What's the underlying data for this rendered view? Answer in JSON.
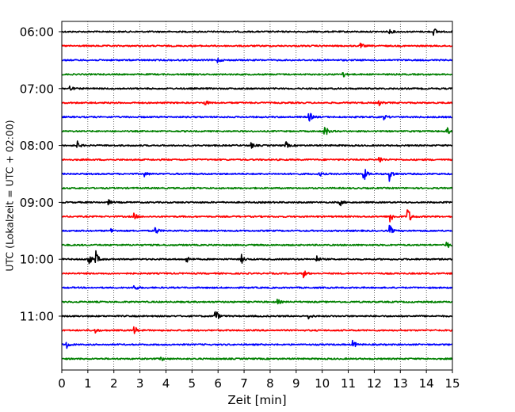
{
  "chart_data": {
    "type": "line",
    "title": "",
    "xlabel": "Zeit  [min]",
    "ylabel": "UTC (Lokalzeit = UTC + 02:00)",
    "xlim": [
      0,
      15
    ],
    "x_ticks": [
      0,
      1,
      2,
      3,
      4,
      5,
      6,
      7,
      8,
      9,
      10,
      11,
      12,
      13,
      14,
      15
    ],
    "x_tick_labels": [
      "0",
      "1",
      "2",
      "3",
      "4",
      "5",
      "6",
      "7",
      "8",
      "9",
      "10",
      "11",
      "12",
      "13",
      "14",
      "15"
    ],
    "grid": "vertical dotted",
    "trace_interval_min": 15,
    "y_tick_labels": [
      {
        "label": "06:00",
        "row": 0
      },
      {
        "label": "07:00",
        "row": 4
      },
      {
        "label": "08:00",
        "row": 8
      },
      {
        "label": "09:00",
        "row": 12
      },
      {
        "label": "10:00",
        "row": 16
      },
      {
        "label": "11:00",
        "row": 20
      }
    ],
    "colors": [
      "#000000",
      "#ff0000",
      "#0000ff",
      "#008000"
    ],
    "series": [
      {
        "start": "06:00",
        "events": [
          {
            "t": 14.3,
            "amp": 0.5
          },
          {
            "t": 12.6,
            "amp": 0.3
          }
        ]
      },
      {
        "start": "06:15",
        "events": [
          {
            "t": 11.5,
            "amp": 0.3
          }
        ]
      },
      {
        "start": "06:30",
        "events": [
          {
            "t": 6.0,
            "amp": 0.3
          }
        ]
      },
      {
        "start": "06:45",
        "events": [
          {
            "t": 10.8,
            "amp": 0.4
          }
        ]
      },
      {
        "start": "07:00",
        "events": [
          {
            "t": 0.3,
            "amp": 0.4
          }
        ]
      },
      {
        "start": "07:15",
        "events": [
          {
            "t": 5.5,
            "amp": 0.4
          },
          {
            "t": 12.2,
            "amp": 0.3
          }
        ]
      },
      {
        "start": "07:30",
        "events": [
          {
            "t": 9.5,
            "amp": 0.8
          },
          {
            "t": 12.4,
            "amp": 0.3
          }
        ]
      },
      {
        "start": "07:45",
        "events": [
          {
            "t": 10.1,
            "amp": 1.0
          },
          {
            "t": 14.8,
            "amp": 0.5
          }
        ]
      },
      {
        "start": "08:00",
        "events": [
          {
            "t": 0.6,
            "amp": 0.5
          },
          {
            "t": 8.6,
            "amp": 0.5
          },
          {
            "t": 7.3,
            "amp": 0.3
          }
        ]
      },
      {
        "start": "08:15",
        "events": [
          {
            "t": 12.2,
            "amp": 0.5
          }
        ]
      },
      {
        "start": "08:30",
        "events": [
          {
            "t": 11.6,
            "amp": 1.0
          },
          {
            "t": 12.6,
            "amp": 1.0
          },
          {
            "t": 3.2,
            "amp": 0.3
          },
          {
            "t": 9.9,
            "amp": 0.3
          }
        ]
      },
      {
        "start": "08:45",
        "events": []
      },
      {
        "start": "09:00",
        "events": [
          {
            "t": 10.7,
            "amp": 0.4
          },
          {
            "t": 1.8,
            "amp": 0.3
          }
        ]
      },
      {
        "start": "09:15",
        "events": [
          {
            "t": 12.6,
            "amp": 1.1
          },
          {
            "t": 13.3,
            "amp": 1.2
          },
          {
            "t": 2.8,
            "amp": 0.4
          }
        ]
      },
      {
        "start": "09:30",
        "events": [
          {
            "t": 3.6,
            "amp": 0.6
          },
          {
            "t": 12.6,
            "amp": 0.7
          },
          {
            "t": 1.9,
            "amp": 0.3
          }
        ]
      },
      {
        "start": "09:45",
        "events": [
          {
            "t": 14.8,
            "amp": 0.5
          }
        ]
      },
      {
        "start": "10:00",
        "events": [
          {
            "t": 1.0,
            "amp": 1.3
          },
          {
            "t": 1.3,
            "amp": 1.1
          },
          {
            "t": 4.8,
            "amp": 0.5
          },
          {
            "t": 6.9,
            "amp": 0.6
          },
          {
            "t": 9.8,
            "amp": 0.4
          }
        ]
      },
      {
        "start": "10:15",
        "events": [
          {
            "t": 9.3,
            "amp": 0.5
          }
        ]
      },
      {
        "start": "10:30",
        "events": [
          {
            "t": 2.8,
            "amp": 0.4
          }
        ]
      },
      {
        "start": "10:45",
        "events": [
          {
            "t": 8.3,
            "amp": 0.3
          }
        ]
      },
      {
        "start": "11:00",
        "events": [
          {
            "t": 5.9,
            "amp": 1.0
          },
          {
            "t": 9.5,
            "amp": 0.3
          }
        ]
      },
      {
        "start": "11:15",
        "events": [
          {
            "t": 2.8,
            "amp": 0.5
          },
          {
            "t": 1.3,
            "amp": 0.3
          }
        ]
      },
      {
        "start": "11:30",
        "events": [
          {
            "t": 0.2,
            "amp": 0.5
          },
          {
            "t": 11.2,
            "amp": 0.5
          }
        ]
      },
      {
        "start": "11:45",
        "events": [
          {
            "t": 3.8,
            "amp": 0.3
          }
        ]
      }
    ]
  }
}
